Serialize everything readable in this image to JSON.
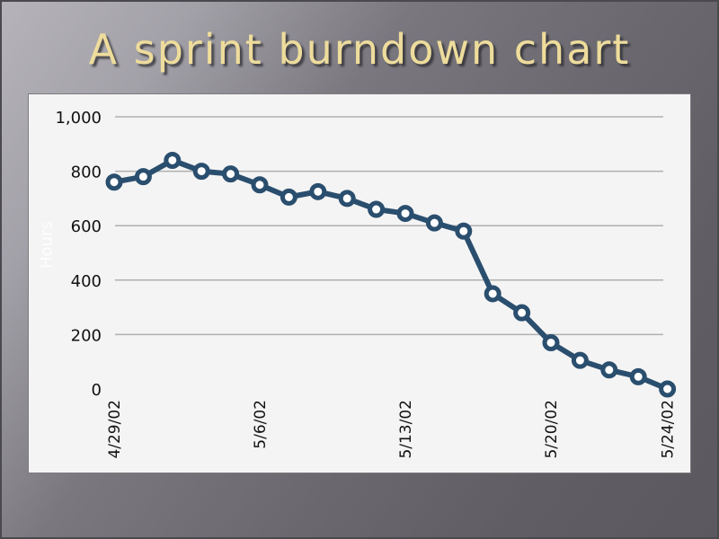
{
  "slide": {
    "title": "A sprint burndown chart"
  },
  "colors": {
    "title": "#eedc9c",
    "line": "#2a4e6e",
    "marker_fill": "#ffffff",
    "panel": "#f4f4f4",
    "grid": "#b0b0b0"
  },
  "chart_data": {
    "type": "line",
    "title": "A sprint burndown chart",
    "xlabel": "",
    "ylabel": "Hours",
    "ylim": [
      0,
      1000
    ],
    "yticks": [
      0,
      200,
      400,
      600,
      800,
      1000
    ],
    "ytick_labels": [
      "0",
      "200",
      "400",
      "600",
      "800",
      "1,000"
    ],
    "grid": true,
    "legend": null,
    "x": [
      "4/29/02",
      "4/30/02",
      "5/1/02",
      "5/2/02",
      "5/3/02",
      "5/6/02",
      "5/7/02",
      "5/8/02",
      "5/9/02",
      "5/10/02",
      "5/13/02",
      "5/14/02",
      "5/15/02",
      "5/16/02",
      "5/17/02",
      "5/20/02",
      "5/21/02",
      "5/22/02",
      "5/23/02",
      "5/24/02"
    ],
    "xtick_labels": [
      {
        "index": 0,
        "label": "4/29/02"
      },
      {
        "index": 5,
        "label": "5/6/02"
      },
      {
        "index": 10,
        "label": "5/13/02"
      },
      {
        "index": 15,
        "label": "5/20/02"
      },
      {
        "index": 19,
        "label": "5/24/02"
      }
    ],
    "series": [
      {
        "name": "Hours remaining",
        "values": [
          760,
          780,
          840,
          800,
          790,
          750,
          705,
          725,
          700,
          660,
          645,
          610,
          580,
          350,
          280,
          170,
          105,
          70,
          45,
          0
        ]
      }
    ]
  }
}
